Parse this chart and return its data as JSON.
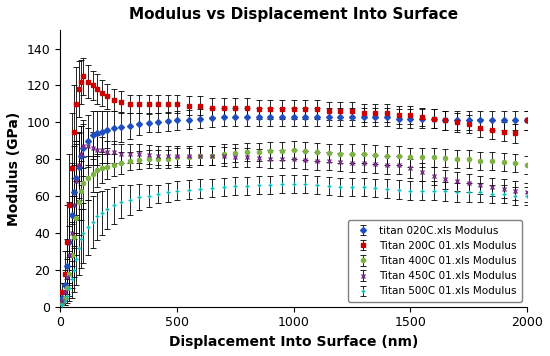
{
  "title": "Modulus vs Displacement Into Surface",
  "xlabel": "Displacement Into Surface (nm)",
  "ylabel": "Modulus (GPa)",
  "xlim": [
    0,
    2000
  ],
  "ylim": [
    0,
    150
  ],
  "yticks": [
    0,
    20,
    40,
    60,
    80,
    100,
    120,
    140
  ],
  "xticks": [
    0,
    500,
    1000,
    1500,
    2000
  ],
  "series": [
    {
      "label": "titan 020C.xls Modulus",
      "color": "#1F4FBF",
      "marker": "D",
      "markersize": 3,
      "x": [
        10,
        20,
        30,
        40,
        50,
        60,
        70,
        80,
        90,
        100,
        120,
        140,
        160,
        180,
        200,
        230,
        260,
        300,
        340,
        380,
        420,
        460,
        500,
        550,
        600,
        650,
        700,
        750,
        800,
        850,
        900,
        950,
        1000,
        1050,
        1100,
        1150,
        1200,
        1250,
        1300,
        1350,
        1400,
        1450,
        1500,
        1550,
        1600,
        1650,
        1700,
        1750,
        1800,
        1850,
        1900,
        1950,
        2000
      ],
      "y": [
        5,
        12,
        22,
        35,
        50,
        62,
        70,
        76,
        82,
        86,
        90,
        93,
        94,
        95,
        96,
        97,
        97.5,
        98,
        99,
        99.5,
        100,
        100.5,
        101,
        101.5,
        102,
        102.5,
        103,
        103,
        103,
        103,
        103,
        103,
        103,
        103,
        103,
        103,
        103,
        103,
        103,
        103,
        103,
        102,
        102,
        102,
        102,
        101,
        101,
        101,
        101,
        101,
        101,
        101,
        101
      ],
      "yerr": [
        3,
        8,
        15,
        22,
        28,
        25,
        20,
        18,
        16,
        15,
        14,
        13,
        12,
        11,
        10,
        9,
        8,
        7,
        6,
        5,
        5,
        5,
        5,
        5,
        5,
        5,
        5,
        5,
        5,
        5,
        5,
        5,
        5,
        5,
        5,
        5,
        5,
        5,
        5,
        5,
        5,
        5,
        5,
        5,
        5,
        5,
        5,
        5,
        5,
        5,
        5,
        5,
        5
      ]
    },
    {
      "label": "Titan 200C 01.xls Modulus",
      "color": "#CC0000",
      "marker": "s",
      "markersize": 3,
      "x": [
        10,
        20,
        30,
        40,
        50,
        60,
        70,
        80,
        90,
        100,
        120,
        140,
        160,
        180,
        200,
        230,
        260,
        300,
        340,
        380,
        420,
        460,
        500,
        550,
        600,
        650,
        700,
        750,
        800,
        850,
        900,
        950,
        1000,
        1050,
        1100,
        1150,
        1200,
        1250,
        1300,
        1350,
        1400,
        1450,
        1500,
        1550,
        1600,
        1650,
        1700,
        1750,
        1800,
        1850,
        1900,
        1950,
        2000
      ],
      "y": [
        8,
        18,
        35,
        55,
        75,
        95,
        110,
        118,
        122,
        125,
        122,
        120,
        118,
        116,
        114,
        112,
        111,
        110,
        110,
        110,
        110,
        110,
        110,
        109,
        109,
        108,
        108,
        108,
        108,
        107,
        107,
        107,
        107,
        107,
        107,
        106,
        106,
        106,
        105,
        105,
        105,
        104,
        104,
        103,
        102,
        101,
        100,
        99,
        97,
        96,
        95,
        94,
        101
      ],
      "yerr": [
        5,
        12,
        20,
        28,
        30,
        25,
        20,
        15,
        12,
        10,
        9,
        8,
        8,
        7,
        7,
        6,
        6,
        5,
        5,
        5,
        5,
        5,
        5,
        5,
        5,
        5,
        5,
        5,
        5,
        5,
        5,
        5,
        5,
        5,
        5,
        5,
        5,
        5,
        5,
        5,
        5,
        5,
        5,
        5,
        5,
        5,
        5,
        5,
        5,
        5,
        5,
        5,
        5
      ]
    },
    {
      "label": "Titan 400C 01.xls Modulus",
      "color": "#7CB342",
      "marker": "o",
      "markersize": 3,
      "x": [
        10,
        20,
        30,
        40,
        50,
        60,
        70,
        80,
        90,
        100,
        120,
        140,
        160,
        180,
        200,
        230,
        260,
        300,
        340,
        380,
        420,
        460,
        500,
        550,
        600,
        650,
        700,
        750,
        800,
        850,
        900,
        950,
        1000,
        1050,
        1100,
        1150,
        1200,
        1250,
        1300,
        1350,
        1400,
        1450,
        1500,
        1550,
        1600,
        1650,
        1700,
        1750,
        1800,
        1850,
        1900,
        1950,
        2000
      ],
      "y": [
        2,
        5,
        10,
        18,
        28,
        38,
        48,
        57,
        63,
        67,
        70,
        72,
        74,
        75,
        76,
        77,
        78,
        79,
        79.5,
        80,
        80,
        80,
        81,
        81,
        82,
        82,
        83,
        83.5,
        84,
        84,
        84.5,
        84.5,
        85,
        84.5,
        84,
        83.5,
        83,
        83,
        83,
        82.5,
        82,
        82,
        81,
        81,
        81,
        80.5,
        80,
        80,
        79,
        79,
        78.5,
        78,
        77
      ],
      "yerr": [
        2,
        4,
        7,
        12,
        18,
        22,
        20,
        18,
        16,
        14,
        12,
        10,
        9,
        8,
        7,
        6,
        6,
        5,
        5,
        5,
        5,
        5,
        5,
        5,
        5,
        5,
        5,
        5,
        5,
        5,
        5,
        5,
        5,
        5,
        5,
        5,
        5,
        5,
        5,
        5,
        5,
        5,
        5,
        5,
        5,
        5,
        5,
        5,
        5,
        5,
        5,
        5,
        5
      ]
    },
    {
      "label": "Titan 450C 01.xls Modulus",
      "color": "#7B2D8B",
      "marker": "x",
      "markersize": 3,
      "x": [
        10,
        20,
        30,
        40,
        50,
        60,
        70,
        80,
        90,
        100,
        120,
        140,
        160,
        180,
        200,
        230,
        260,
        300,
        340,
        380,
        420,
        460,
        500,
        550,
        600,
        650,
        700,
        750,
        800,
        850,
        900,
        950,
        1000,
        1050,
        1100,
        1150,
        1200,
        1250,
        1300,
        1350,
        1400,
        1450,
        1500,
        1550,
        1600,
        1650,
        1700,
        1750,
        1800,
        1850,
        1900,
        1950,
        2000
      ],
      "y": [
        3,
        8,
        16,
        28,
        40,
        55,
        68,
        77,
        83,
        87,
        87,
        86,
        85,
        85,
        84,
        84,
        83,
        83,
        83,
        82.5,
        82,
        82,
        82,
        82,
        82,
        82,
        81.5,
        81,
        81,
        80.5,
        80,
        80,
        80,
        79.5,
        79,
        79,
        78.5,
        78,
        78,
        77.5,
        77,
        77,
        75,
        73,
        71,
        69,
        68,
        67,
        66,
        65,
        64,
        63,
        62
      ],
      "yerr": [
        2,
        5,
        10,
        16,
        20,
        22,
        20,
        18,
        15,
        12,
        10,
        9,
        8,
        7,
        6,
        6,
        5,
        5,
        5,
        5,
        5,
        5,
        5,
        5,
        5,
        5,
        5,
        5,
        5,
        5,
        5,
        5,
        5,
        5,
        5,
        5,
        5,
        5,
        5,
        5,
        5,
        5,
        5,
        5,
        5,
        5,
        5,
        5,
        5,
        5,
        5,
        5,
        5
      ]
    },
    {
      "label": "Titan 500C 01.xls Modulus",
      "color": "#00BFBF",
      "marker": "+",
      "markersize": 3,
      "x": [
        10,
        20,
        30,
        40,
        50,
        60,
        70,
        80,
        90,
        100,
        120,
        140,
        160,
        180,
        200,
        230,
        260,
        300,
        340,
        380,
        420,
        460,
        500,
        550,
        600,
        650,
        700,
        750,
        800,
        850,
        900,
        950,
        1000,
        1050,
        1100,
        1150,
        1200,
        1250,
        1300,
        1350,
        1400,
        1450,
        1500,
        1550,
        1600,
        1650,
        1700,
        1750,
        1800,
        1850,
        1900,
        1950,
        2000
      ],
      "y": [
        1,
        3,
        6,
        10,
        15,
        20,
        26,
        32,
        37,
        40,
        43,
        46,
        49,
        51,
        53,
        55,
        57,
        58,
        59.5,
        60,
        61,
        62,
        63,
        63.5,
        64,
        64.5,
        65,
        65.5,
        65.5,
        66,
        66,
        66.5,
        66.5,
        66.5,
        66,
        65.5,
        65,
        65,
        65,
        64.5,
        64,
        63.5,
        63,
        63,
        63,
        62.5,
        62,
        62,
        62,
        61,
        61,
        60,
        60
      ],
      "yerr": [
        1,
        2,
        4,
        7,
        10,
        12,
        14,
        15,
        16,
        16,
        15,
        14,
        13,
        12,
        11,
        10,
        9,
        8,
        7,
        6,
        5,
        5,
        5,
        5,
        5,
        5,
        5,
        5,
        5,
        5,
        5,
        5,
        5,
        5,
        5,
        5,
        5,
        5,
        5,
        5,
        5,
        5,
        5,
        5,
        5,
        5,
        5,
        5,
        5,
        5,
        5,
        5,
        5
      ]
    }
  ],
  "background_color": "#FFFFFF",
  "legend_loc": "lower right",
  "title_fontsize": 11,
  "axis_fontsize": 10,
  "tick_fontsize": 9,
  "legend_fontsize": 7.5
}
